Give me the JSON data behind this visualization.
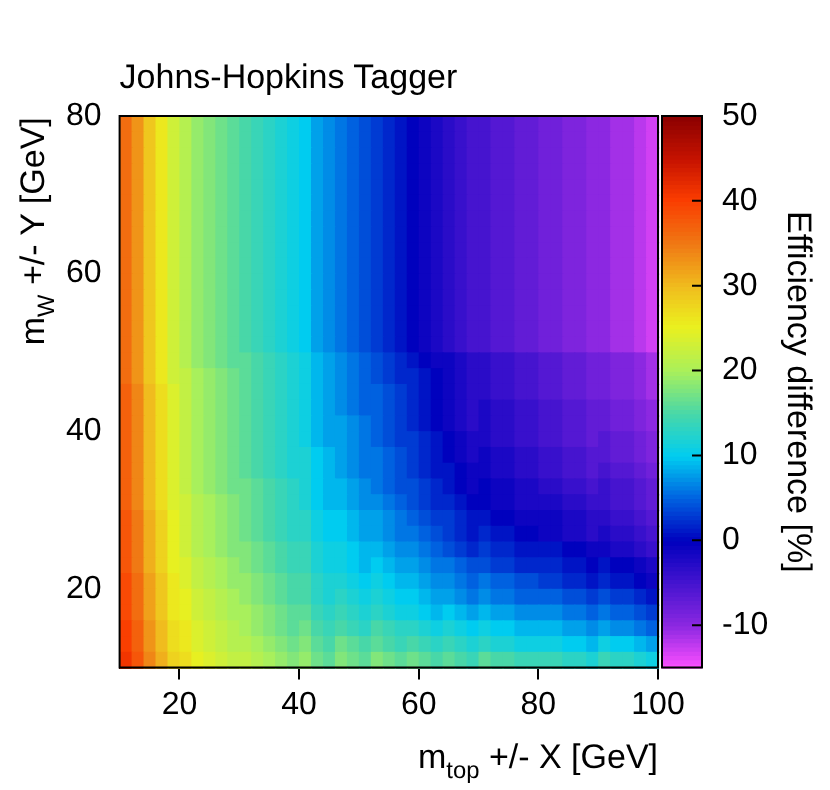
{
  "chart_data": {
    "type": "heatmap",
    "title": "Johns-Hopkins Tagger",
    "xlabel": "m$_{top}$ +/- X [GeV]",
    "ylabel": "m$_{W}$ +/- Y [GeV]",
    "clabel": "Efficiency difference [%]",
    "xlim": [
      10,
      100
    ],
    "xticks": [
      20,
      40,
      60,
      80,
      100
    ],
    "ylim": [
      10,
      80
    ],
    "yticks": [
      20,
      40,
      60,
      80
    ],
    "clim": [
      -15,
      50
    ],
    "cticks": [
      -10,
      0,
      10,
      20,
      30,
      40,
      50
    ],
    "cells": [
      [
        36,
        33,
        29,
        26,
        23,
        21,
        19,
        18,
        17,
        16,
        15,
        14,
        13,
        12,
        11,
        10,
        8,
        7,
        6,
        5,
        4,
        3,
        2,
        1,
        0,
        -1,
        -2,
        -3,
        -4,
        -5,
        -5,
        -6,
        -6,
        -7,
        -7,
        -8,
        -8,
        -9,
        -9,
        -10,
        -10,
        -11,
        -11,
        -12,
        -13
      ],
      [
        36,
        33,
        29,
        26,
        23,
        21,
        19,
        18,
        17,
        16,
        15,
        14,
        13,
        12,
        11,
        10,
        8,
        7,
        6,
        5,
        4,
        3,
        2,
        1,
        0,
        -1,
        -2,
        -3,
        -4,
        -5,
        -5,
        -6,
        -6,
        -7,
        -7,
        -8,
        -8,
        -9,
        -9,
        -10,
        -10,
        -11,
        -11,
        -12,
        -13
      ],
      [
        36,
        33,
        29,
        26,
        23,
        21,
        19,
        18,
        17,
        16,
        15,
        14,
        13,
        12,
        11,
        10,
        8,
        7,
        6,
        5,
        4,
        3,
        2,
        1,
        0,
        -1,
        -2,
        -3,
        -4,
        -5,
        -5,
        -6,
        -6,
        -7,
        -7,
        -8,
        -8,
        -9,
        -9,
        -10,
        -10,
        -11,
        -11,
        -12,
        -13
      ],
      [
        36,
        33,
        29,
        26,
        23,
        21,
        19,
        18,
        17,
        16,
        15,
        14,
        13,
        12,
        11,
        10,
        8,
        7,
        6,
        5,
        4,
        3,
        2,
        1,
        0,
        -1,
        -2,
        -3,
        -4,
        -5,
        -5,
        -6,
        -6,
        -7,
        -7,
        -8,
        -8,
        -9,
        -9,
        -10,
        -10,
        -11,
        -11,
        -12,
        -13
      ],
      [
        36,
        33,
        29,
        26,
        23,
        21,
        19,
        18,
        17,
        16,
        15,
        14,
        13,
        12,
        11,
        10,
        8,
        7,
        6,
        5,
        4,
        3,
        2,
        1,
        0,
        -1,
        -2,
        -3,
        -4,
        -5,
        -5,
        -6,
        -6,
        -7,
        -7,
        -8,
        -8,
        -9,
        -9,
        -10,
        -10,
        -11,
        -11,
        -12,
        -13
      ],
      [
        36,
        33,
        29,
        26,
        23,
        21,
        19,
        18,
        17,
        16,
        15,
        14,
        13,
        12,
        11,
        10,
        8,
        7,
        6,
        5,
        4,
        3,
        2,
        1,
        0,
        -1,
        -2,
        -3,
        -4,
        -5,
        -5,
        -6,
        -6,
        -7,
        -7,
        -8,
        -8,
        -9,
        -9,
        -10,
        -10,
        -11,
        -11,
        -12,
        -13
      ],
      [
        36,
        33,
        29,
        26,
        23,
        21,
        19,
        18,
        17,
        16,
        15,
        14,
        13,
        12,
        11,
        10,
        8,
        7,
        6,
        5,
        4,
        3,
        2,
        1,
        0,
        -1,
        -2,
        -3,
        -4,
        -5,
        -5,
        -6,
        -6,
        -7,
        -7,
        -8,
        -8,
        -9,
        -9,
        -10,
        -10,
        -11,
        -11,
        -12,
        -13
      ],
      [
        36,
        33,
        29,
        26,
        23,
        21,
        19,
        18,
        17,
        16,
        15,
        14,
        13,
        12,
        11,
        10,
        8,
        7,
        6,
        5,
        4,
        3,
        2,
        1,
        0,
        -1,
        -2,
        -3,
        -4,
        -5,
        -5,
        -6,
        -6,
        -7,
        -7,
        -8,
        -8,
        -9,
        -9,
        -10,
        -10,
        -11,
        -11,
        -12,
        -13
      ],
      [
        36,
        33,
        29,
        26,
        23,
        21,
        19,
        18,
        17,
        16,
        15,
        14,
        13,
        12,
        11,
        10,
        8,
        7,
        6,
        5,
        4,
        3,
        2,
        1,
        0,
        -1,
        -2,
        -3,
        -4,
        -5,
        -5,
        -6,
        -6,
        -7,
        -7,
        -8,
        -8,
        -9,
        -9,
        -10,
        -10,
        -11,
        -11,
        -12,
        -13
      ],
      [
        36,
        33,
        29,
        26,
        23,
        21,
        19,
        18,
        17,
        16,
        15,
        14,
        13,
        12,
        11,
        10,
        8,
        7,
        6,
        5,
        4,
        3,
        2,
        1,
        0,
        -1,
        -2,
        -3,
        -4,
        -5,
        -5,
        -6,
        -6,
        -7,
        -7,
        -8,
        -8,
        -9,
        -9,
        -10,
        -10,
        -11,
        -11,
        -12,
        -13
      ],
      [
        36,
        33,
        29,
        26,
        23,
        21,
        19,
        18,
        17,
        16,
        15,
        14,
        13,
        12,
        11,
        10,
        8,
        7,
        6,
        5,
        4,
        3,
        2,
        1,
        0,
        -1,
        -2,
        -3,
        -4,
        -5,
        -5,
        -6,
        -6,
        -7,
        -7,
        -8,
        -8,
        -9,
        -9,
        -10,
        -10,
        -11,
        -11,
        -12,
        -13
      ],
      [
        36,
        33,
        29,
        26,
        23,
        21,
        19,
        18,
        17,
        16,
        15,
        14,
        13,
        12,
        11,
        10,
        8,
        7,
        6,
        5,
        4,
        3,
        2,
        1,
        0,
        -1,
        -2,
        -3,
        -4,
        -5,
        -5,
        -6,
        -6,
        -7,
        -7,
        -8,
        -8,
        -9,
        -9,
        -10,
        -10,
        -11,
        -11,
        -12,
        -13
      ],
      [
        36,
        33,
        29,
        26,
        23,
        21,
        19,
        18,
        17,
        16,
        15,
        14,
        13,
        12,
        11,
        10,
        8,
        7,
        6,
        5,
        4,
        3,
        2,
        1,
        0,
        -1,
        -2,
        -3,
        -4,
        -5,
        -5,
        -6,
        -6,
        -7,
        -7,
        -8,
        -8,
        -9,
        -9,
        -10,
        -10,
        -11,
        -11,
        -12,
        -13
      ],
      [
        36,
        33,
        29,
        26,
        23,
        21,
        19,
        18,
        17,
        16,
        15,
        14,
        13,
        12,
        11,
        10,
        8,
        7,
        6,
        5,
        4,
        3,
        2,
        1,
        0,
        -1,
        -2,
        -3,
        -4,
        -5,
        -5,
        -6,
        -6,
        -7,
        -7,
        -8,
        -8,
        -9,
        -9,
        -10,
        -10,
        -11,
        -11,
        -12,
        -13
      ],
      [
        36,
        33,
        29,
        26,
        23,
        21,
        19,
        18,
        17,
        16,
        15,
        14,
        13,
        12,
        11,
        10,
        8,
        7,
        6,
        5,
        4,
        3,
        2,
        1,
        0,
        -1,
        -2,
        -3,
        -4,
        -5,
        -5,
        -6,
        -6,
        -7,
        -7,
        -8,
        -8,
        -9,
        -9,
        -10,
        -10,
        -11,
        -11,
        -12,
        -13
      ],
      [
        36,
        33,
        29,
        26,
        23,
        21,
        19,
        18,
        17,
        16,
        16,
        15,
        14,
        13,
        12,
        11,
        9,
        8,
        7,
        6,
        5,
        4,
        3,
        2,
        1,
        0,
        -1,
        -1,
        -2,
        -3,
        -3,
        -4,
        -4,
        -5,
        -5,
        -6,
        -6,
        -7,
        -7,
        -8,
        -8,
        -9,
        -9,
        -10,
        -11
      ],
      [
        36,
        33,
        29,
        26,
        23,
        22,
        20,
        19,
        18,
        17,
        16,
        15,
        14,
        13,
        12,
        11,
        9,
        8,
        7,
        6,
        5,
        4,
        3,
        2,
        2,
        1,
        0,
        -1,
        -2,
        -3,
        -3,
        -4,
        -4,
        -5,
        -5,
        -6,
        -6,
        -7,
        -7,
        -8,
        -8,
        -9,
        -9,
        -10,
        -11
      ],
      [
        37,
        34,
        30,
        27,
        24,
        22,
        20,
        19,
        18,
        17,
        16,
        15,
        14,
        13,
        12,
        11,
        9,
        8,
        7,
        6,
        5,
        5,
        4,
        3,
        2,
        1,
        0,
        -1,
        -2,
        -3,
        -3,
        -4,
        -4,
        -5,
        -5,
        -6,
        -6,
        -7,
        -7,
        -8,
        -8,
        -9,
        -9,
        -10,
        -11
      ],
      [
        37,
        34,
        30,
        27,
        24,
        22,
        20,
        19,
        18,
        17,
        16,
        15,
        14,
        13,
        12,
        11,
        9,
        8,
        7,
        6,
        5,
        5,
        4,
        3,
        2,
        1,
        0,
        -1,
        -2,
        -3,
        -2,
        -3,
        -3,
        -4,
        -4,
        -5,
        -5,
        -6,
        -6,
        -7,
        -7,
        -8,
        -8,
        -9,
        -10
      ],
      [
        37,
        34,
        30,
        27,
        24,
        22,
        20,
        19,
        18,
        17,
        16,
        15,
        14,
        13,
        12,
        11,
        9,
        8,
        8,
        7,
        6,
        5,
        4,
        3,
        2,
        1,
        0,
        -1,
        -2,
        -3,
        -2,
        -3,
        -3,
        -4,
        -4,
        -5,
        -5,
        -6,
        -6,
        -7,
        -7,
        -8,
        -8,
        -9,
        -10
      ],
      [
        37,
        34,
        30,
        27,
        24,
        22,
        20,
        19,
        18,
        17,
        16,
        15,
        14,
        13,
        12,
        11,
        9,
        8,
        8,
        7,
        6,
        5,
        4,
        3,
        3,
        2,
        1,
        0,
        -1,
        -2,
        -2,
        -3,
        -3,
        -4,
        -4,
        -5,
        -5,
        -6,
        -6,
        -7,
        -6,
        -7,
        -7,
        -8,
        -9
      ],
      [
        37,
        34,
        30,
        27,
        24,
        22,
        20,
        19,
        18,
        17,
        16,
        15,
        14,
        13,
        12,
        12,
        10,
        9,
        8,
        7,
        6,
        6,
        5,
        4,
        3,
        2,
        1,
        0,
        -1,
        -2,
        -1,
        -2,
        -2,
        -3,
        -3,
        -4,
        -4,
        -5,
        -5,
        -6,
        -6,
        -7,
        -7,
        -8,
        -9
      ],
      [
        37,
        34,
        30,
        27,
        24,
        22,
        20,
        19,
        18,
        17,
        16,
        15,
        14,
        13,
        12,
        12,
        10,
        9,
        8,
        7,
        6,
        6,
        5,
        4,
        3,
        2,
        1,
        1,
        0,
        -1,
        -1,
        -2,
        -2,
        -3,
        -3,
        -4,
        -4,
        -5,
        -5,
        -6,
        -5,
        -6,
        -6,
        -7,
        -8
      ],
      [
        37,
        34,
        30,
        27,
        24,
        22,
        20,
        19,
        18,
        17,
        17,
        16,
        15,
        14,
        13,
        12,
        10,
        9,
        9,
        8,
        7,
        6,
        5,
        4,
        4,
        3,
        2,
        1,
        0,
        -1,
        0,
        -1,
        -1,
        -2,
        -2,
        -3,
        -3,
        -4,
        -4,
        -5,
        -4,
        -5,
        -5,
        -6,
        -7
      ],
      [
        37,
        34,
        30,
        27,
        24,
        23,
        21,
        20,
        19,
        18,
        17,
        16,
        15,
        14,
        13,
        12,
        10,
        9,
        9,
        8,
        7,
        7,
        6,
        5,
        4,
        3,
        2,
        2,
        1,
        0,
        0,
        -1,
        -1,
        -2,
        -2,
        -2,
        -2,
        -3,
        -3,
        -4,
        -4,
        -5,
        -5,
        -6,
        -7
      ],
      [
        38,
        35,
        31,
        28,
        25,
        23,
        21,
        20,
        19,
        18,
        17,
        16,
        15,
        14,
        13,
        13,
        11,
        10,
        10,
        9,
        8,
        8,
        7,
        6,
        5,
        4,
        3,
        3,
        2,
        1,
        1,
        0,
        0,
        -1,
        -1,
        -1,
        -1,
        -2,
        -2,
        -3,
        -3,
        -4,
        -4,
        -5,
        -6
      ],
      [
        38,
        35,
        31,
        28,
        25,
        23,
        21,
        20,
        19,
        18,
        17,
        16,
        15,
        14,
        13,
        13,
        11,
        10,
        10,
        9,
        8,
        8,
        7,
        6,
        6,
        5,
        4,
        3,
        2,
        1,
        2,
        1,
        1,
        0,
        0,
        -1,
        -1,
        -2,
        -2,
        -3,
        -2,
        -3,
        -3,
        -4,
        -5
      ],
      [
        38,
        35,
        31,
        28,
        25,
        23,
        21,
        20,
        19,
        18,
        18,
        17,
        16,
        15,
        14,
        14,
        12,
        11,
        11,
        10,
        9,
        9,
        8,
        7,
        7,
        6,
        5,
        4,
        3,
        2,
        3,
        2,
        2,
        1,
        1,
        1,
        1,
        0,
        0,
        -1,
        -1,
        -2,
        -2,
        -3,
        -4
      ],
      [
        38,
        35,
        31,
        28,
        25,
        24,
        22,
        21,
        20,
        19,
        18,
        17,
        16,
        15,
        14,
        14,
        12,
        11,
        11,
        10,
        9,
        10,
        9,
        8,
        8,
        7,
        6,
        6,
        5,
        4,
        4,
        3,
        3,
        2,
        2,
        2,
        2,
        1,
        1,
        0,
        1,
        0,
        0,
        -1,
        -2
      ],
      [
        39,
        36,
        32,
        29,
        26,
        24,
        22,
        21,
        20,
        19,
        19,
        18,
        17,
        16,
        15,
        15,
        13,
        12,
        12,
        11,
        10,
        11,
        10,
        9,
        9,
        8,
        7,
        7,
        6,
        5,
        6,
        5,
        5,
        4,
        4,
        3,
        3,
        2,
        2,
        1,
        2,
        1,
        1,
        0,
        -1
      ],
      [
        39,
        36,
        32,
        29,
        26,
        25,
        23,
        22,
        21,
        20,
        19,
        18,
        17,
        16,
        15,
        15,
        13,
        12,
        13,
        12,
        11,
        12,
        11,
        10,
        10,
        9,
        8,
        8,
        7,
        6,
        7,
        6,
        6,
        5,
        5,
        5,
        5,
        4,
        4,
        3,
        4,
        3,
        3,
        2,
        1
      ],
      [
        39,
        36,
        32,
        29,
        26,
        25,
        23,
        22,
        21,
        20,
        20,
        19,
        18,
        17,
        16,
        16,
        14,
        13,
        14,
        13,
        12,
        13,
        12,
        11,
        11,
        10,
        9,
        10,
        9,
        8,
        9,
        8,
        8,
        7,
        7,
        7,
        7,
        6,
        6,
        5,
        6,
        5,
        5,
        4,
        3
      ],
      [
        40,
        37,
        33,
        30,
        27,
        26,
        24,
        23,
        22,
        21,
        20,
        19,
        18,
        17,
        16,
        17,
        15,
        14,
        15,
        14,
        13,
        15,
        14,
        13,
        13,
        12,
        11,
        12,
        11,
        10,
        11,
        10,
        10,
        9,
        9,
        9,
        9,
        8,
        8,
        7,
        8,
        7,
        7,
        6,
        5
      ],
      [
        40,
        37,
        33,
        30,
        27,
        26,
        24,
        23,
        22,
        21,
        21,
        20,
        19,
        18,
        17,
        18,
        16,
        15,
        17,
        16,
        15,
        16,
        15,
        14,
        15,
        14,
        13,
        14,
        13,
        12,
        13,
        12,
        12,
        11,
        11,
        11,
        11,
        10,
        10,
        9,
        11,
        10,
        10,
        9,
        8
      ],
      [
        41,
        38,
        34,
        31,
        28,
        27,
        25,
        24,
        23,
        22,
        22,
        21,
        20,
        19,
        18,
        19,
        17,
        16,
        18,
        17,
        16,
        18,
        17,
        16,
        17,
        16,
        15,
        16,
        15,
        14,
        16,
        15,
        15,
        14,
        14,
        14,
        14,
        13,
        13,
        12,
        14,
        13,
        13,
        12,
        11
      ]
    ]
  }
}
